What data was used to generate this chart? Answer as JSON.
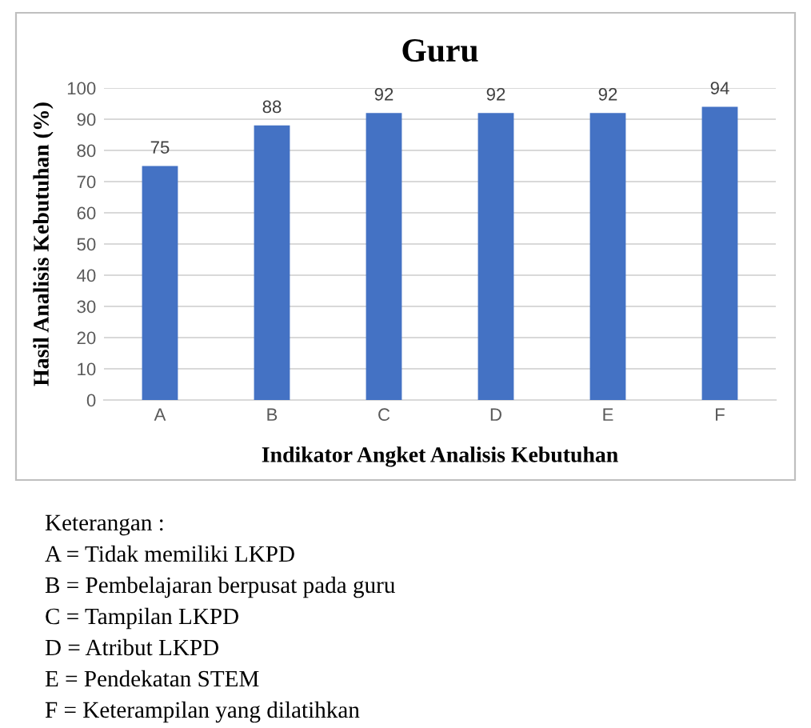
{
  "chart_data": {
    "type": "bar",
    "title": "Guru",
    "xlabel": "Indikator Angket Analisis Kebutuhan",
    "ylabel": "Hasil Analisis Kebutuhan (%)",
    "categories": [
      "A",
      "B",
      "C",
      "D",
      "E",
      "F"
    ],
    "values": [
      75,
      88,
      92,
      92,
      92,
      94
    ],
    "color": "#4472c4",
    "ylim": [
      0,
      100
    ],
    "yticks": [
      0,
      10,
      20,
      30,
      40,
      50,
      60,
      70,
      80,
      90,
      100
    ],
    "grid": "y",
    "data_labels": true,
    "annotations": [
      "Keterangan :",
      "A = Tidak memiliki LKPD",
      "B = Pembelajaran berpusat pada guru",
      "C = Tampilan LKPD",
      "D = Atribut LKPD",
      "E = Pendekatan STEM",
      "F = Keterampilan yang dilatihkan"
    ]
  }
}
